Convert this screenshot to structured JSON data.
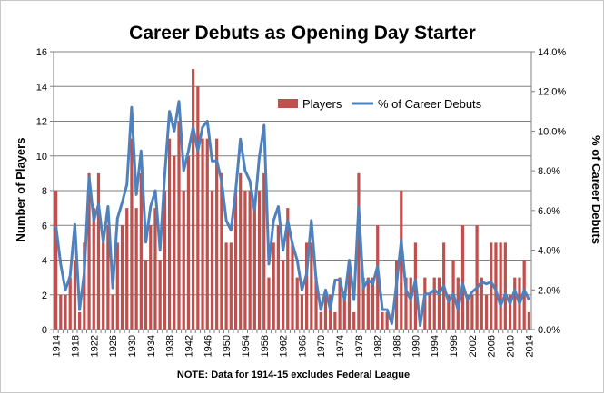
{
  "chart_data": {
    "type": "bar",
    "title": "Career Debuts as Opening Day Starter",
    "note": "NOTE: Data for 1914-15 excludes Federal League",
    "xlabel": "",
    "ylabel": "Number of Players",
    "y2label": "% of Career Debuts",
    "ylim": [
      0,
      16
    ],
    "y2lim": [
      0,
      14
    ],
    "yticks": [
      "0",
      "2",
      "4",
      "6",
      "8",
      "10",
      "12",
      "14",
      "16"
    ],
    "y2ticks": [
      "0.0%",
      "2.0%",
      "4.0%",
      "6.0%",
      "8.0%",
      "10.0%",
      "12.0%",
      "14.0%"
    ],
    "grid": true,
    "legend_position": "top-right",
    "colors": {
      "bar": "#c0504d",
      "line": "#4f81bd",
      "grid": "#808080"
    },
    "x": [
      1914,
      1915,
      1916,
      1917,
      1918,
      1919,
      1920,
      1921,
      1922,
      1923,
      1924,
      1925,
      1926,
      1927,
      1928,
      1929,
      1930,
      1931,
      1932,
      1933,
      1934,
      1935,
      1936,
      1937,
      1938,
      1939,
      1940,
      1941,
      1942,
      1943,
      1944,
      1945,
      1946,
      1947,
      1948,
      1949,
      1950,
      1951,
      1952,
      1953,
      1954,
      1955,
      1956,
      1957,
      1958,
      1959,
      1960,
      1961,
      1962,
      1963,
      1964,
      1965,
      1966,
      1967,
      1968,
      1969,
      1970,
      1971,
      1972,
      1973,
      1974,
      1975,
      1976,
      1977,
      1978,
      1979,
      1980,
      1981,
      1982,
      1983,
      1984,
      1985,
      1986,
      1987,
      1988,
      1989,
      1990,
      1991,
      1992,
      1993,
      1994,
      1995,
      1996,
      1997,
      1998,
      1999,
      2000,
      2001,
      2002,
      2003,
      2004,
      2005,
      2006,
      2007,
      2008,
      2009,
      2010,
      2011,
      2012,
      2013,
      2014
    ],
    "xticklabels": [
      "1914",
      "1918",
      "1922",
      "1926",
      "1930",
      "1934",
      "1938",
      "1942",
      "1946",
      "1950",
      "1954",
      "1958",
      "1962",
      "1966",
      "1970",
      "1974",
      "1978",
      "1982",
      "1986",
      "1990",
      "1994",
      "1998",
      "2002",
      "2006",
      "2010",
      "2014"
    ],
    "series": [
      {
        "name": "Players",
        "kind": "bar",
        "axis": "left",
        "values": [
          8,
          2,
          2,
          3,
          4,
          1,
          5,
          9,
          7,
          9,
          5,
          6,
          2,
          5,
          6,
          7,
          11,
          7,
          9,
          4,
          6,
          7,
          4,
          8,
          11,
          10,
          12,
          8,
          10,
          15,
          14,
          11,
          11,
          8,
          11,
          9,
          5,
          5,
          8,
          9,
          8,
          8,
          7,
          8,
          9,
          3,
          5,
          6,
          4,
          7,
          5,
          3,
          2,
          5,
          5,
          3,
          1,
          2,
          2,
          1,
          3,
          2,
          4,
          1,
          9,
          3,
          3,
          3,
          6,
          1,
          1,
          0,
          4,
          8,
          3,
          3,
          5,
          0,
          3,
          2,
          3,
          3,
          5,
          2,
          4,
          3,
          6,
          2,
          2,
          6,
          3,
          2,
          5,
          5,
          5,
          5,
          2,
          3,
          3,
          4,
          1
        ]
      },
      {
        "name": "% of Career Debuts",
        "kind": "line",
        "axis": "right",
        "values": [
          5.2,
          3.3,
          2.0,
          2.7,
          5.3,
          1.0,
          2.9,
          7.7,
          5.5,
          6.3,
          4.4,
          6.2,
          2.1,
          5.6,
          6.4,
          7.3,
          11.2,
          6.8,
          9.0,
          4.4,
          6.2,
          7.0,
          4.0,
          7.8,
          11.0,
          10.0,
          11.5,
          8.0,
          9.0,
          10.2,
          9.0,
          10.2,
          10.5,
          8.5,
          8.5,
          7.5,
          5.5,
          5.0,
          7.0,
          9.6,
          8.0,
          7.5,
          6.0,
          8.7,
          10.3,
          3.3,
          5.5,
          6.2,
          4.0,
          5.5,
          4.3,
          3.5,
          2.0,
          2.8,
          5.5,
          2.5,
          1.0,
          2.0,
          1.0,
          2.5,
          2.5,
          1.5,
          3.5,
          1.5,
          6.2,
          2.1,
          2.5,
          2.3,
          3.2,
          1.0,
          1.0,
          0.3,
          2.3,
          4.5,
          2.0,
          1.5,
          2.5,
          0.2,
          1.8,
          1.8,
          2.0,
          1.8,
          2.2,
          1.4,
          1.8,
          1.0,
          2.3,
          1.5,
          1.9,
          2.1,
          2.4,
          2.3,
          2.4,
          2.0,
          1.2,
          1.8,
          1.3,
          2.0,
          1.3,
          2.0,
          1.5
        ]
      }
    ]
  }
}
